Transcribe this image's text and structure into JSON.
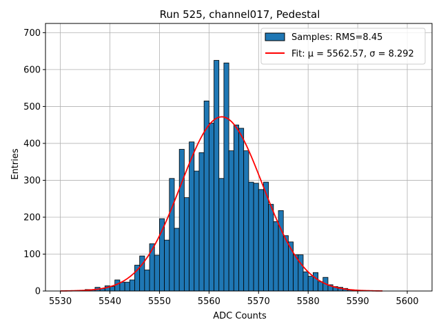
{
  "chart_data": {
    "type": "bar",
    "title": "Run 525, channel017, Pedestal",
    "xlabel": "ADC Counts",
    "ylabel": "Entries",
    "xlim": [
      5527,
      5605
    ],
    "ylim": [
      0,
      725
    ],
    "xticks": [
      5530,
      5540,
      5550,
      5560,
      5570,
      5580,
      5590,
      5600
    ],
    "yticks": [
      0,
      100,
      200,
      300,
      400,
      500,
      600,
      700
    ],
    "grid": true,
    "legend_position": "top-right",
    "legend": [
      {
        "label": "Samples: RMS=8.45",
        "kind": "bar",
        "color": "#1f77b4"
      },
      {
        "label": "Fit: μ = 5562.57, σ = 8.292",
        "kind": "line",
        "color": "#ff0000"
      }
    ],
    "histogram": {
      "name": "Samples: RMS=8.45",
      "color": "#1f77b4",
      "edge_color": "#000000",
      "bin_start": 5530,
      "bin_width": 1,
      "counts": [
        0,
        0,
        0,
        0,
        0,
        0,
        0,
        0,
        0,
        0,
        0,
        0,
        0,
        0,
        0,
        0,
        0,
        0,
        0,
        0,
        0,
        0,
        0,
        0,
        0,
        0,
        0,
        0,
        0,
        0,
        0,
        0,
        0,
        0,
        0,
        0,
        0,
        0,
        0,
        0,
        0,
        0,
        0,
        0,
        0,
        0,
        0,
        0,
        0,
        0,
        0,
        0,
        0,
        0,
        0,
        0,
        0,
        0,
        0,
        0,
        0,
        0,
        0,
        0,
        0,
        0,
        0,
        0,
        0,
        0,
        0,
        0,
        0
      ]
    },
    "bars": {
      "bin_edges_start": 5530,
      "bin_width": 1,
      "values": [
        0,
        0,
        0,
        0,
        0,
        4,
        4,
        10,
        7,
        14,
        12,
        30,
        24,
        24,
        30,
        70,
        95,
        57,
        128,
        97,
        196,
        138,
        305,
        170,
        384,
        253,
        404,
        325,
        375,
        515,
        455,
        625,
        305,
        618,
        380,
        450,
        441,
        380,
        295,
        292,
        275,
        295,
        235,
        188,
        218,
        150,
        133,
        98,
        98,
        52,
        40,
        50,
        25,
        37,
        17,
        12,
        10,
        7,
        3,
        2,
        2,
        0,
        0,
        0,
        0,
        0,
        0,
        0,
        0,
        0,
        0,
        0,
        0
      ]
    },
    "fit": {
      "name": "Fit: μ = 5562.57, σ = 8.292",
      "color": "#ff0000",
      "mu": 5562.57,
      "sigma": 8.292,
      "amplitude": 472,
      "x_range": [
        5530,
        5595
      ]
    }
  }
}
